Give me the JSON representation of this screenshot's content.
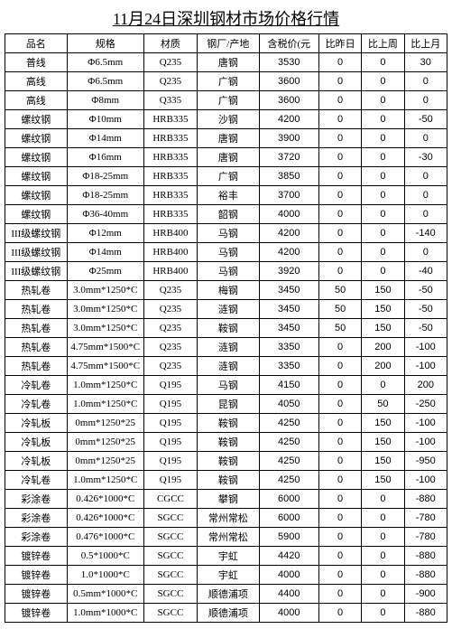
{
  "title": "11月24日深圳钢材市场价格行情",
  "columns": [
    "品名",
    "规格",
    "材质",
    "钢厂/产地",
    "含税价(元",
    "比昨日",
    "比上周",
    "比上月"
  ],
  "rows": [
    [
      "普线",
      "Φ6.5mm",
      "Q235",
      "唐钢",
      "3530",
      "0",
      "0",
      "30"
    ],
    [
      "高线",
      "Φ6.5mm",
      "Q235",
      "广钢",
      "3600",
      "0",
      "0",
      "0"
    ],
    [
      "高线",
      "Φ8mm",
      "Q335",
      "广钢",
      "3600",
      "0",
      "0",
      "0"
    ],
    [
      "螺纹钢",
      "Φ10mm",
      "HRB335",
      "沙钢",
      "4200",
      "0",
      "0",
      "-50"
    ],
    [
      "螺纹钢",
      "Φ14mm",
      "HRB335",
      "唐钢",
      "3900",
      "0",
      "0",
      "0"
    ],
    [
      "螺纹钢",
      "Φ16mm",
      "HRB335",
      "唐钢",
      "3720",
      "0",
      "0",
      "-30"
    ],
    [
      "螺纹钢",
      "Φ18-25mm",
      "HRB335",
      "广钢",
      "3850",
      "0",
      "0",
      "0"
    ],
    [
      "螺纹钢",
      "Φ18-25mm",
      "HRB335",
      "裕丰",
      "3700",
      "0",
      "0",
      "0"
    ],
    [
      "螺纹钢",
      "Φ36-40mm",
      "HRB335",
      "韶钢",
      "4000",
      "0",
      "0",
      "0"
    ],
    [
      "III级螺纹钢",
      "Φ12mm",
      "HRB400",
      "马钢",
      "4200",
      "0",
      "0",
      "-140"
    ],
    [
      "III级螺纹钢",
      "Φ14mm",
      "HRB400",
      "马钢",
      "4200",
      "0",
      "0",
      "0"
    ],
    [
      "III级螺纹钢",
      "Φ25mm",
      "HRB400",
      "马钢",
      "3920",
      "0",
      "0",
      "-40"
    ],
    [
      "热轧卷",
      "3.0mm*1250*C",
      "Q235",
      "梅钢",
      "3450",
      "50",
      "150",
      "-50"
    ],
    [
      "热轧卷",
      "3.0mm*1250*C",
      "Q235",
      "涟钢",
      "3450",
      "50",
      "150",
      "-50"
    ],
    [
      "热轧卷",
      "3.0mm*1250*C",
      "Q235",
      "鞍钢",
      "3450",
      "50",
      "150",
      "-50"
    ],
    [
      "热轧卷",
      "4.75mm*1500*C",
      "Q235",
      "涟钢",
      "3350",
      "0",
      "200",
      "-100"
    ],
    [
      "热轧卷",
      "4.75mm*1500*C",
      "Q235",
      "涟钢",
      "3350",
      "0",
      "200",
      "-100"
    ],
    [
      "冷轧卷",
      "1.0mm*1250*C",
      "Q195",
      "马钢",
      "4150",
      "0",
      "0",
      "200"
    ],
    [
      "冷轧卷",
      "1.0mm*1250*C",
      "Q195",
      "昆钢",
      "4050",
      "0",
      "50",
      "-250"
    ],
    [
      "冷轧板",
      "0mm*1250*25",
      "Q195",
      "鞍钢",
      "4250",
      "0",
      "150",
      "-100"
    ],
    [
      "冷轧板",
      "0mm*1250*25",
      "Q195",
      "鞍钢",
      "4250",
      "0",
      "150",
      "-100"
    ],
    [
      "冷轧板",
      "0mm*1250*25",
      "Q195",
      "鞍钢",
      "4250",
      "0",
      "150",
      "-950"
    ],
    [
      "冷轧卷",
      "1.0mm*1250*C",
      "Q195",
      "鞍钢",
      "4250",
      "0",
      "150",
      "-100"
    ],
    [
      "彩涂卷",
      "0.426*1000*C",
      "CGCC",
      "攀钢",
      "6000",
      "0",
      "0",
      "-880"
    ],
    [
      "彩涂卷",
      "0.426*1000*C",
      "SGCC",
      "常州常松",
      "6000",
      "0",
      "0",
      "-780"
    ],
    [
      "彩涂卷",
      "0.476*1000*C",
      "SGCC",
      "常州常松",
      "5900",
      "0",
      "0",
      "-780"
    ],
    [
      "镀锌卷",
      "0.5*1000*C",
      "SGCC",
      "宇虹",
      "4420",
      "0",
      "0",
      "-880"
    ],
    [
      "镀锌卷",
      "1.0*1000*C",
      "SGCC",
      "宇虹",
      "4000",
      "0",
      "0",
      "-880"
    ],
    [
      "镀锌卷",
      "0.5mm*1000*C",
      "SGCC",
      "顺德浦项",
      "4400",
      "0",
      "0",
      "-900"
    ],
    [
      "镀锌卷",
      "1.0mm*1000*C",
      "SGCC",
      "顺德浦项",
      "4000",
      "0",
      "0",
      "-880"
    ]
  ],
  "style": {
    "background_color": "#ffffff",
    "border_color": "#000000",
    "title_fontsize": 18,
    "cell_fontsize": 11
  }
}
